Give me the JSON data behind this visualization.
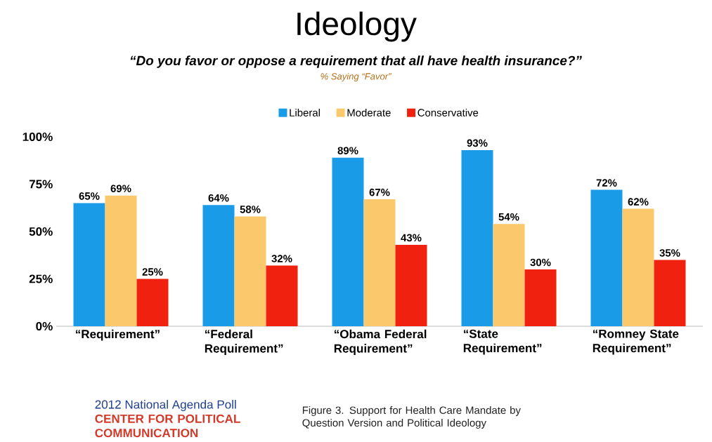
{
  "chart_data": {
    "type": "bar",
    "title": "Ideology",
    "subtitle": "“Do you favor or oppose a requirement that all have health insurance?”",
    "categories": [
      "“Requirement”",
      "“Federal Requirement”",
      "“Obama Federal Requirement”",
      "“State Requirement”",
      "“Romney State Requirement”"
    ],
    "series": [
      {
        "name": "Liberal",
        "color": "#1a9be8",
        "values": [
          65,
          64,
          89,
          93,
          72
        ],
        "value_labels": [
          "65%",
          "64%",
          "89%",
          "93%",
          "72%"
        ]
      },
      {
        "name": "Moderate",
        "color": "#fbc96b",
        "values": [
          69,
          58,
          67,
          54,
          62
        ],
        "value_labels": [
          "69%",
          "58%",
          "67%",
          "54%",
          "62%"
        ]
      },
      {
        "name": "Conservative",
        "color": "#f0220f",
        "values": [
          25,
          32,
          43,
          30,
          35
        ],
        "value_labels": [
          "25%",
          "32%",
          "43%",
          "30%",
          "35%"
        ]
      }
    ],
    "ylim": [
      0,
      100
    ],
    "yticks": [
      {
        "value": 0,
        "label": "0%"
      },
      {
        "value": 25,
        "label": "25%"
      },
      {
        "value": 50,
        "label": "50%"
      },
      {
        "value": 75,
        "label": "75%"
      },
      {
        "value": 100,
        "label": "100%"
      }
    ],
    "legend": "top",
    "annotations": [
      "% Saying “Favor”",
      "2012 National Agenda Poll",
      "CENTER FOR POLITICAL COMMUNICATION",
      "Figure 3. Support for Health Care Mandate by Question Version and Political Ideology"
    ]
  }
}
